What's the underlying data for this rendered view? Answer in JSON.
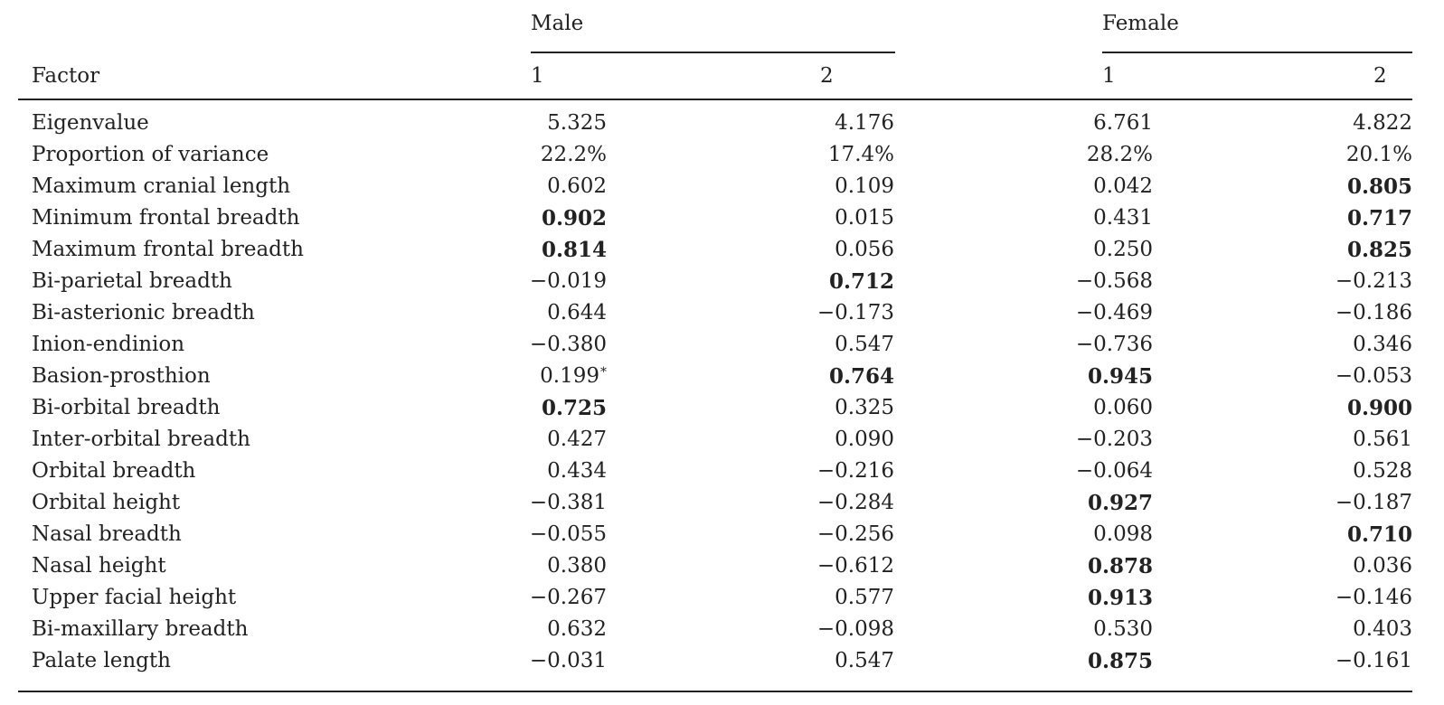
{
  "header": {
    "male": "Male",
    "female": "Female",
    "factor": "Factor",
    "m1": "1",
    "m2": "2",
    "f1": "1",
    "f2": "2"
  },
  "rows": [
    {
      "label": "Eigenvalue",
      "m1": "5.325",
      "m2": "4.176",
      "f1": "6.761",
      "f2": "4.822",
      "bold": []
    },
    {
      "label": "Proportion of variance",
      "m1": "22.2%",
      "m2": "17.4%",
      "f1": "28.2%",
      "f2": "20.1%",
      "bold": []
    },
    {
      "label": "Maximum cranial length",
      "m1": "0.602",
      "m2": "0.109",
      "f1": "0.042",
      "f2": "0.805",
      "bold": [
        "f2"
      ]
    },
    {
      "label": "Minimum frontal breadth",
      "m1": "0.902",
      "m2": "0.015",
      "f1": "0.431",
      "f2": "0.717",
      "bold": [
        "m1",
        "f2"
      ]
    },
    {
      "label": "Maximum frontal breadth",
      "m1": "0.814",
      "m2": "0.056",
      "f1": "0.250",
      "f2": "0.825",
      "bold": [
        "m1",
        "f2"
      ]
    },
    {
      "label": "Bi-parietal breadth",
      "m1": "−0.019",
      "m2": "0.712",
      "f1": "−0.568",
      "f2": "−0.213",
      "bold": [
        "m2"
      ]
    },
    {
      "label": "Bi-asterionic breadth",
      "m1": "0.644",
      "m2": "−0.173",
      "f1": "−0.469",
      "f2": "−0.186",
      "bold": []
    },
    {
      "label": "Inion-endinion",
      "m1": "−0.380",
      "m2": "0.547",
      "f1": "−0.736",
      "f2": "0.346",
      "bold": []
    },
    {
      "label": "Basion-prosthion",
      "m1": "0.199",
      "m1_mark": "*",
      "m2": "0.764",
      "f1": "0.945",
      "f2": "−0.053",
      "bold": [
        "m2",
        "f1"
      ]
    },
    {
      "label": "Bi-orbital breadth",
      "m1": "0.725",
      "m2": "0.325",
      "f1": "0.060",
      "f2": "0.900",
      "bold": [
        "m1",
        "f2"
      ]
    },
    {
      "label": "Inter-orbital breadth",
      "m1": "0.427",
      "m2": "0.090",
      "f1": "−0.203",
      "f2": "0.561",
      "bold": []
    },
    {
      "label": "Orbital breadth",
      "m1": "0.434",
      "m2": "−0.216",
      "f1": "−0.064",
      "f2": "0.528",
      "bold": []
    },
    {
      "label": "Orbital height",
      "m1": "−0.381",
      "m2": "−0.284",
      "f1": "0.927",
      "f2": "−0.187",
      "bold": [
        "f1"
      ]
    },
    {
      "label": "Nasal breadth",
      "m1": "−0.055",
      "m2": "−0.256",
      "f1": "0.098",
      "f2": "0.710",
      "bold": [
        "f2"
      ]
    },
    {
      "label": "Nasal height",
      "m1": "0.380",
      "m2": "−0.612",
      "f1": "0.878",
      "f2": "0.036",
      "bold": [
        "f1"
      ]
    },
    {
      "label": "Upper facial height",
      "m1": "−0.267",
      "m2": "0.577",
      "f1": "0.913",
      "f2": "−0.146",
      "bold": [
        "f1"
      ]
    },
    {
      "label": "Bi-maxillary breadth",
      "m1": "0.632",
      "m2": "−0.098",
      "f1": "0.530",
      "f2": "0.403",
      "bold": []
    },
    {
      "label": "Palate length",
      "m1": "−0.031",
      "m2": "0.547",
      "f1": "0.875",
      "f2": "−0.161",
      "bold": [
        "f1"
      ]
    }
  ]
}
